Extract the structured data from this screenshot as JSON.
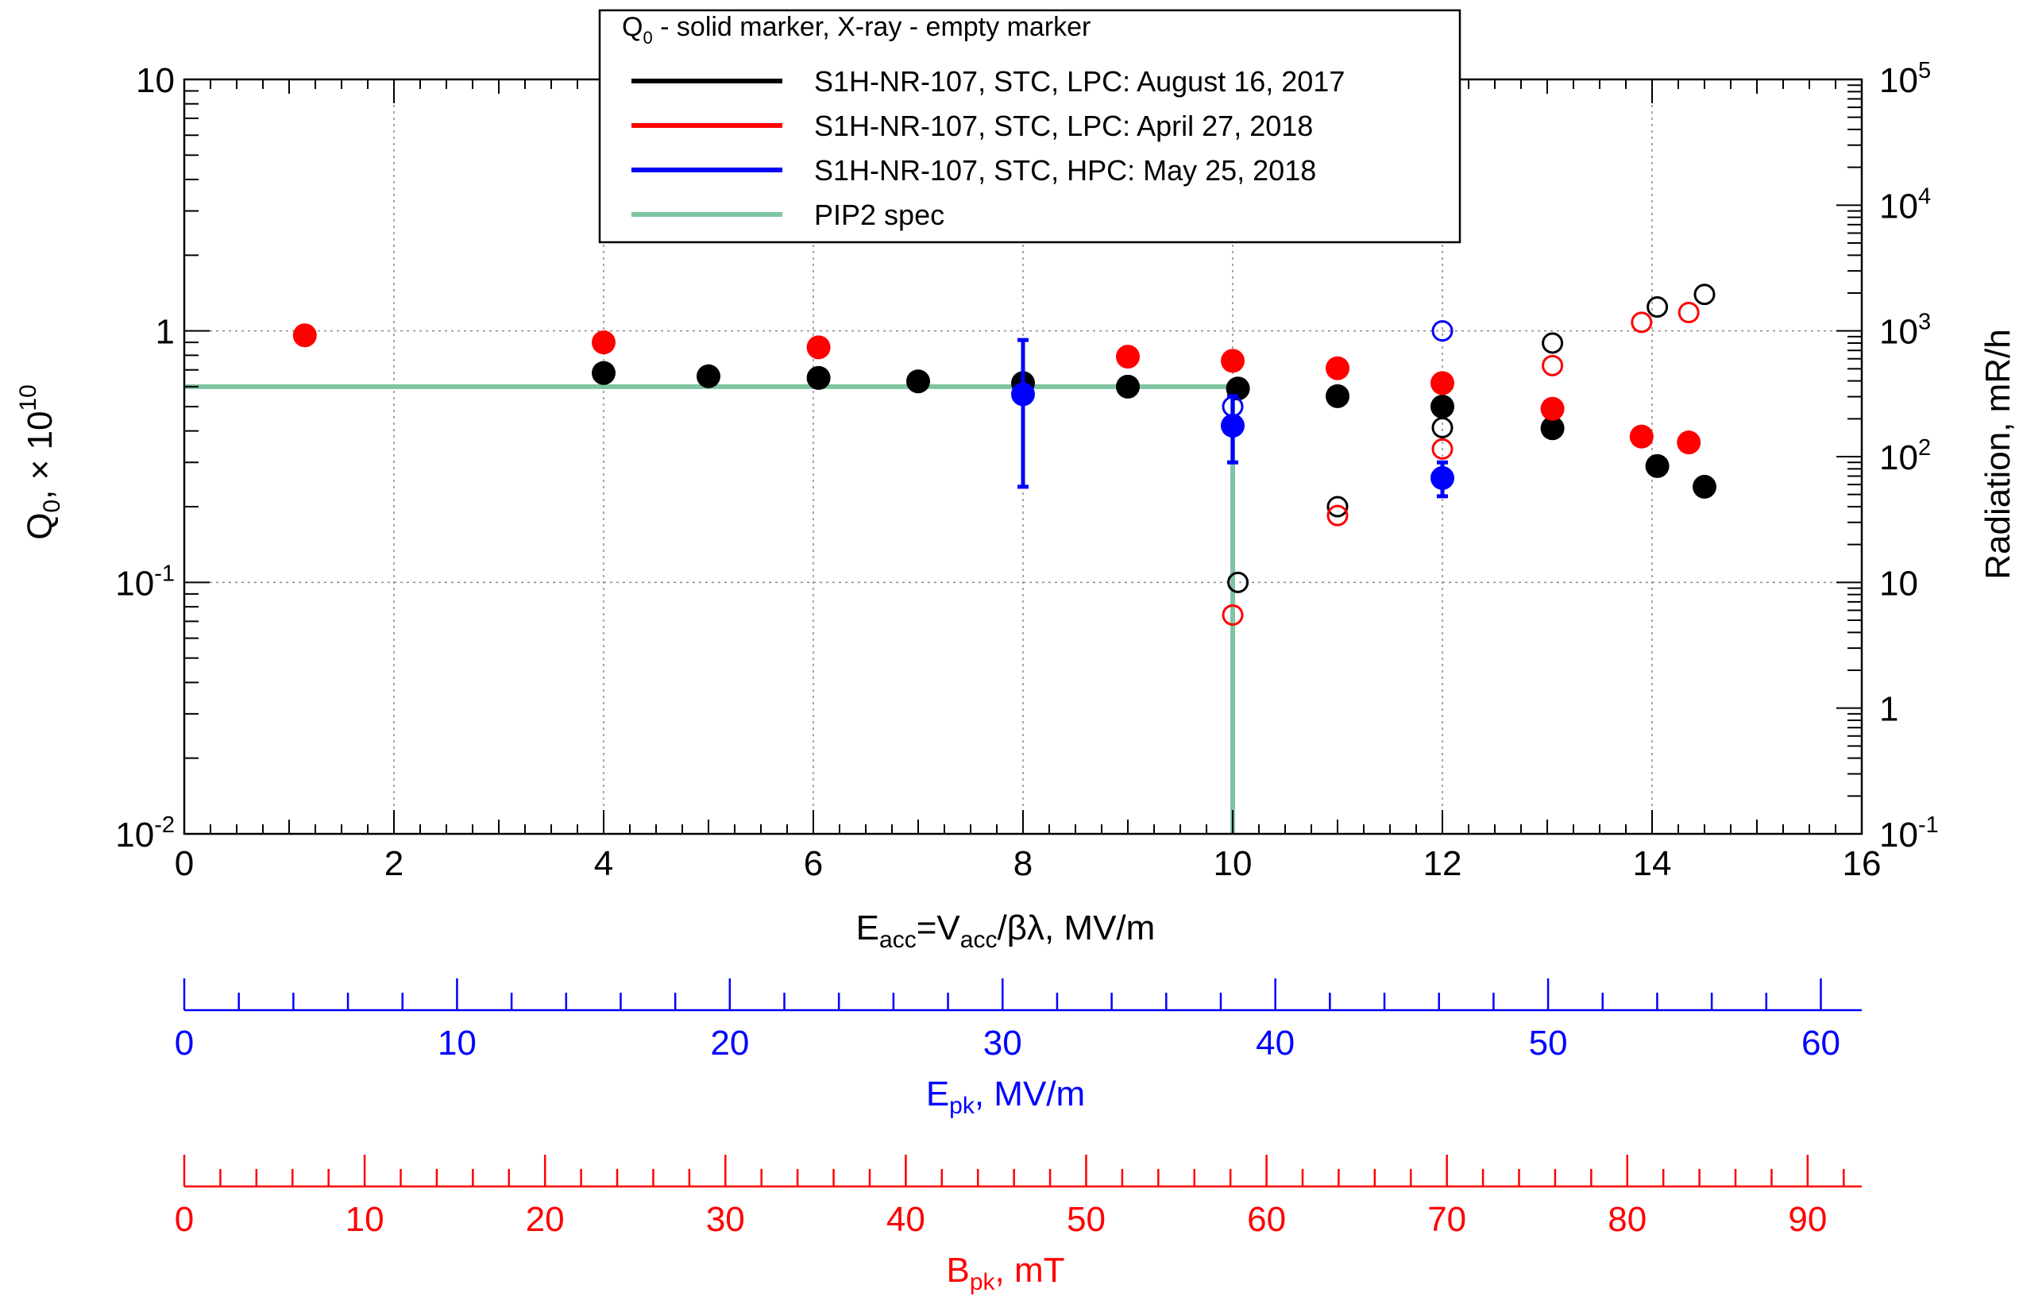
{
  "chart_data": {
    "type": "scatter",
    "title": "",
    "xlabel": {
      "main": "E",
      "sub": "acc",
      "rest": "=V",
      "sub2": "acc",
      "rest2": "/βλ, MV/m"
    },
    "ylabel": {
      "main": "Q",
      "sub": "0",
      "rest": ", × 10",
      "sup": "10"
    },
    "y2label": "Radiation, mR/h",
    "xlim": [
      0,
      16
    ],
    "ylim": [
      0.01,
      10
    ],
    "y_scale": "log",
    "y2lim": [
      0.1,
      100000
    ],
    "y2_scale": "log",
    "grid": true,
    "x_ticks": [
      "0",
      "2",
      "4",
      "6",
      "8",
      "10",
      "12",
      "14",
      "16"
    ],
    "y_ticks": [
      {
        "base": "10",
        "exp": "-2"
      },
      {
        "base": "10",
        "exp": "-1"
      },
      {
        "base": "1",
        "exp": ""
      },
      {
        "base": "10",
        "exp": ""
      }
    ],
    "y2_ticks": [
      {
        "base": "10",
        "exp": "-1"
      },
      {
        "base": "1",
        "exp": ""
      },
      {
        "base": "10",
        "exp": ""
      },
      {
        "base": "10",
        "exp": "2"
      },
      {
        "base": "10",
        "exp": "3"
      },
      {
        "base": "10",
        "exp": "4"
      },
      {
        "base": "10",
        "exp": "5"
      }
    ],
    "legend": {
      "placement": "top-center",
      "header": {
        "main": "Q",
        "sub": "0",
        "rest": " - solid marker, X-ray - empty marker"
      },
      "entries": [
        {
          "label": "S1H-NR-107, STC, LPC: August 16, 2017",
          "color": "#000000"
        },
        {
          "label": "S1H-NR-107, STC, LPC: April 27, 2018",
          "color": "#ff0000"
        },
        {
          "label": "S1H-NR-107, STC, HPC: May 25, 2018",
          "color": "#0000ff"
        },
        {
          "label": "PIP2 spec",
          "color": "#7fc4a0"
        }
      ]
    },
    "series": [
      {
        "name": "S1H-NR-107, STC, LPC: August 16, 2017",
        "color": "#000000",
        "q0": [
          [
            4,
            0.68
          ],
          [
            5,
            0.66
          ],
          [
            6.05,
            0.65
          ],
          [
            7,
            0.63
          ],
          [
            8,
            0.62
          ],
          [
            9,
            0.6
          ],
          [
            10.05,
            0.59
          ],
          [
            11,
            0.55
          ],
          [
            12,
            0.5
          ],
          [
            13.05,
            0.41
          ],
          [
            14.05,
            0.29
          ],
          [
            14.5,
            0.24
          ]
        ],
        "xray": [
          [
            10.05,
            10
          ],
          [
            11,
            40
          ],
          [
            12,
            170
          ],
          [
            13.05,
            800
          ],
          [
            14.05,
            1550
          ],
          [
            14.5,
            1950
          ]
        ]
      },
      {
        "name": "S1H-NR-107, STC, LPC: April 27, 2018",
        "color": "#ff0000",
        "q0": [
          [
            1.15,
            0.96
          ],
          [
            4,
            0.9
          ],
          [
            6.05,
            0.86
          ],
          [
            9,
            0.79
          ],
          [
            10,
            0.76
          ],
          [
            11,
            0.71
          ],
          [
            12,
            0.62
          ],
          [
            13.05,
            0.49
          ],
          [
            13.9,
            0.38
          ],
          [
            14.35,
            0.36
          ]
        ],
        "xray": [
          [
            10,
            5.5
          ],
          [
            11,
            34
          ],
          [
            12,
            115
          ],
          [
            13.05,
            530
          ],
          [
            13.9,
            1170
          ],
          [
            14.35,
            1400
          ]
        ]
      },
      {
        "name": "S1H-NR-107, STC, HPC: May 25, 2018",
        "color": "#0000ff",
        "q0": [
          [
            8,
            0.56,
            0.24,
            0.92
          ],
          [
            10,
            0.42,
            0.3,
            0.55
          ],
          [
            12,
            0.26,
            0.22,
            0.3
          ]
        ],
        "xray": [
          [
            10,
            250
          ],
          [
            12,
            1000
          ]
        ]
      }
    ],
    "spec": {
      "name": "PIP2 spec",
      "color": "#7fc4a0",
      "points": [
        [
          0,
          0.6
        ],
        [
          10,
          0.6
        ],
        [
          10,
          0.01
        ]
      ]
    },
    "secondary_axes": [
      {
        "color": "#0000ff",
        "label": {
          "main": "E",
          "sub": "pk",
          "rest": ", MV/m"
        },
        "max": 61.5,
        "major_step": 10,
        "minor_step": 2,
        "tick_labels": [
          "0",
          "10",
          "20",
          "30",
          "40",
          "50",
          "60"
        ]
      },
      {
        "color": "#ff0000",
        "label": {
          "main": "B",
          "sub": "pk",
          "rest": ", mT"
        },
        "max": 93,
        "major_step": 10,
        "minor_step": 2,
        "tick_labels": [
          "0",
          "10",
          "20",
          "30",
          "40",
          "50",
          "60",
          "70",
          "80",
          "90"
        ]
      }
    ]
  }
}
